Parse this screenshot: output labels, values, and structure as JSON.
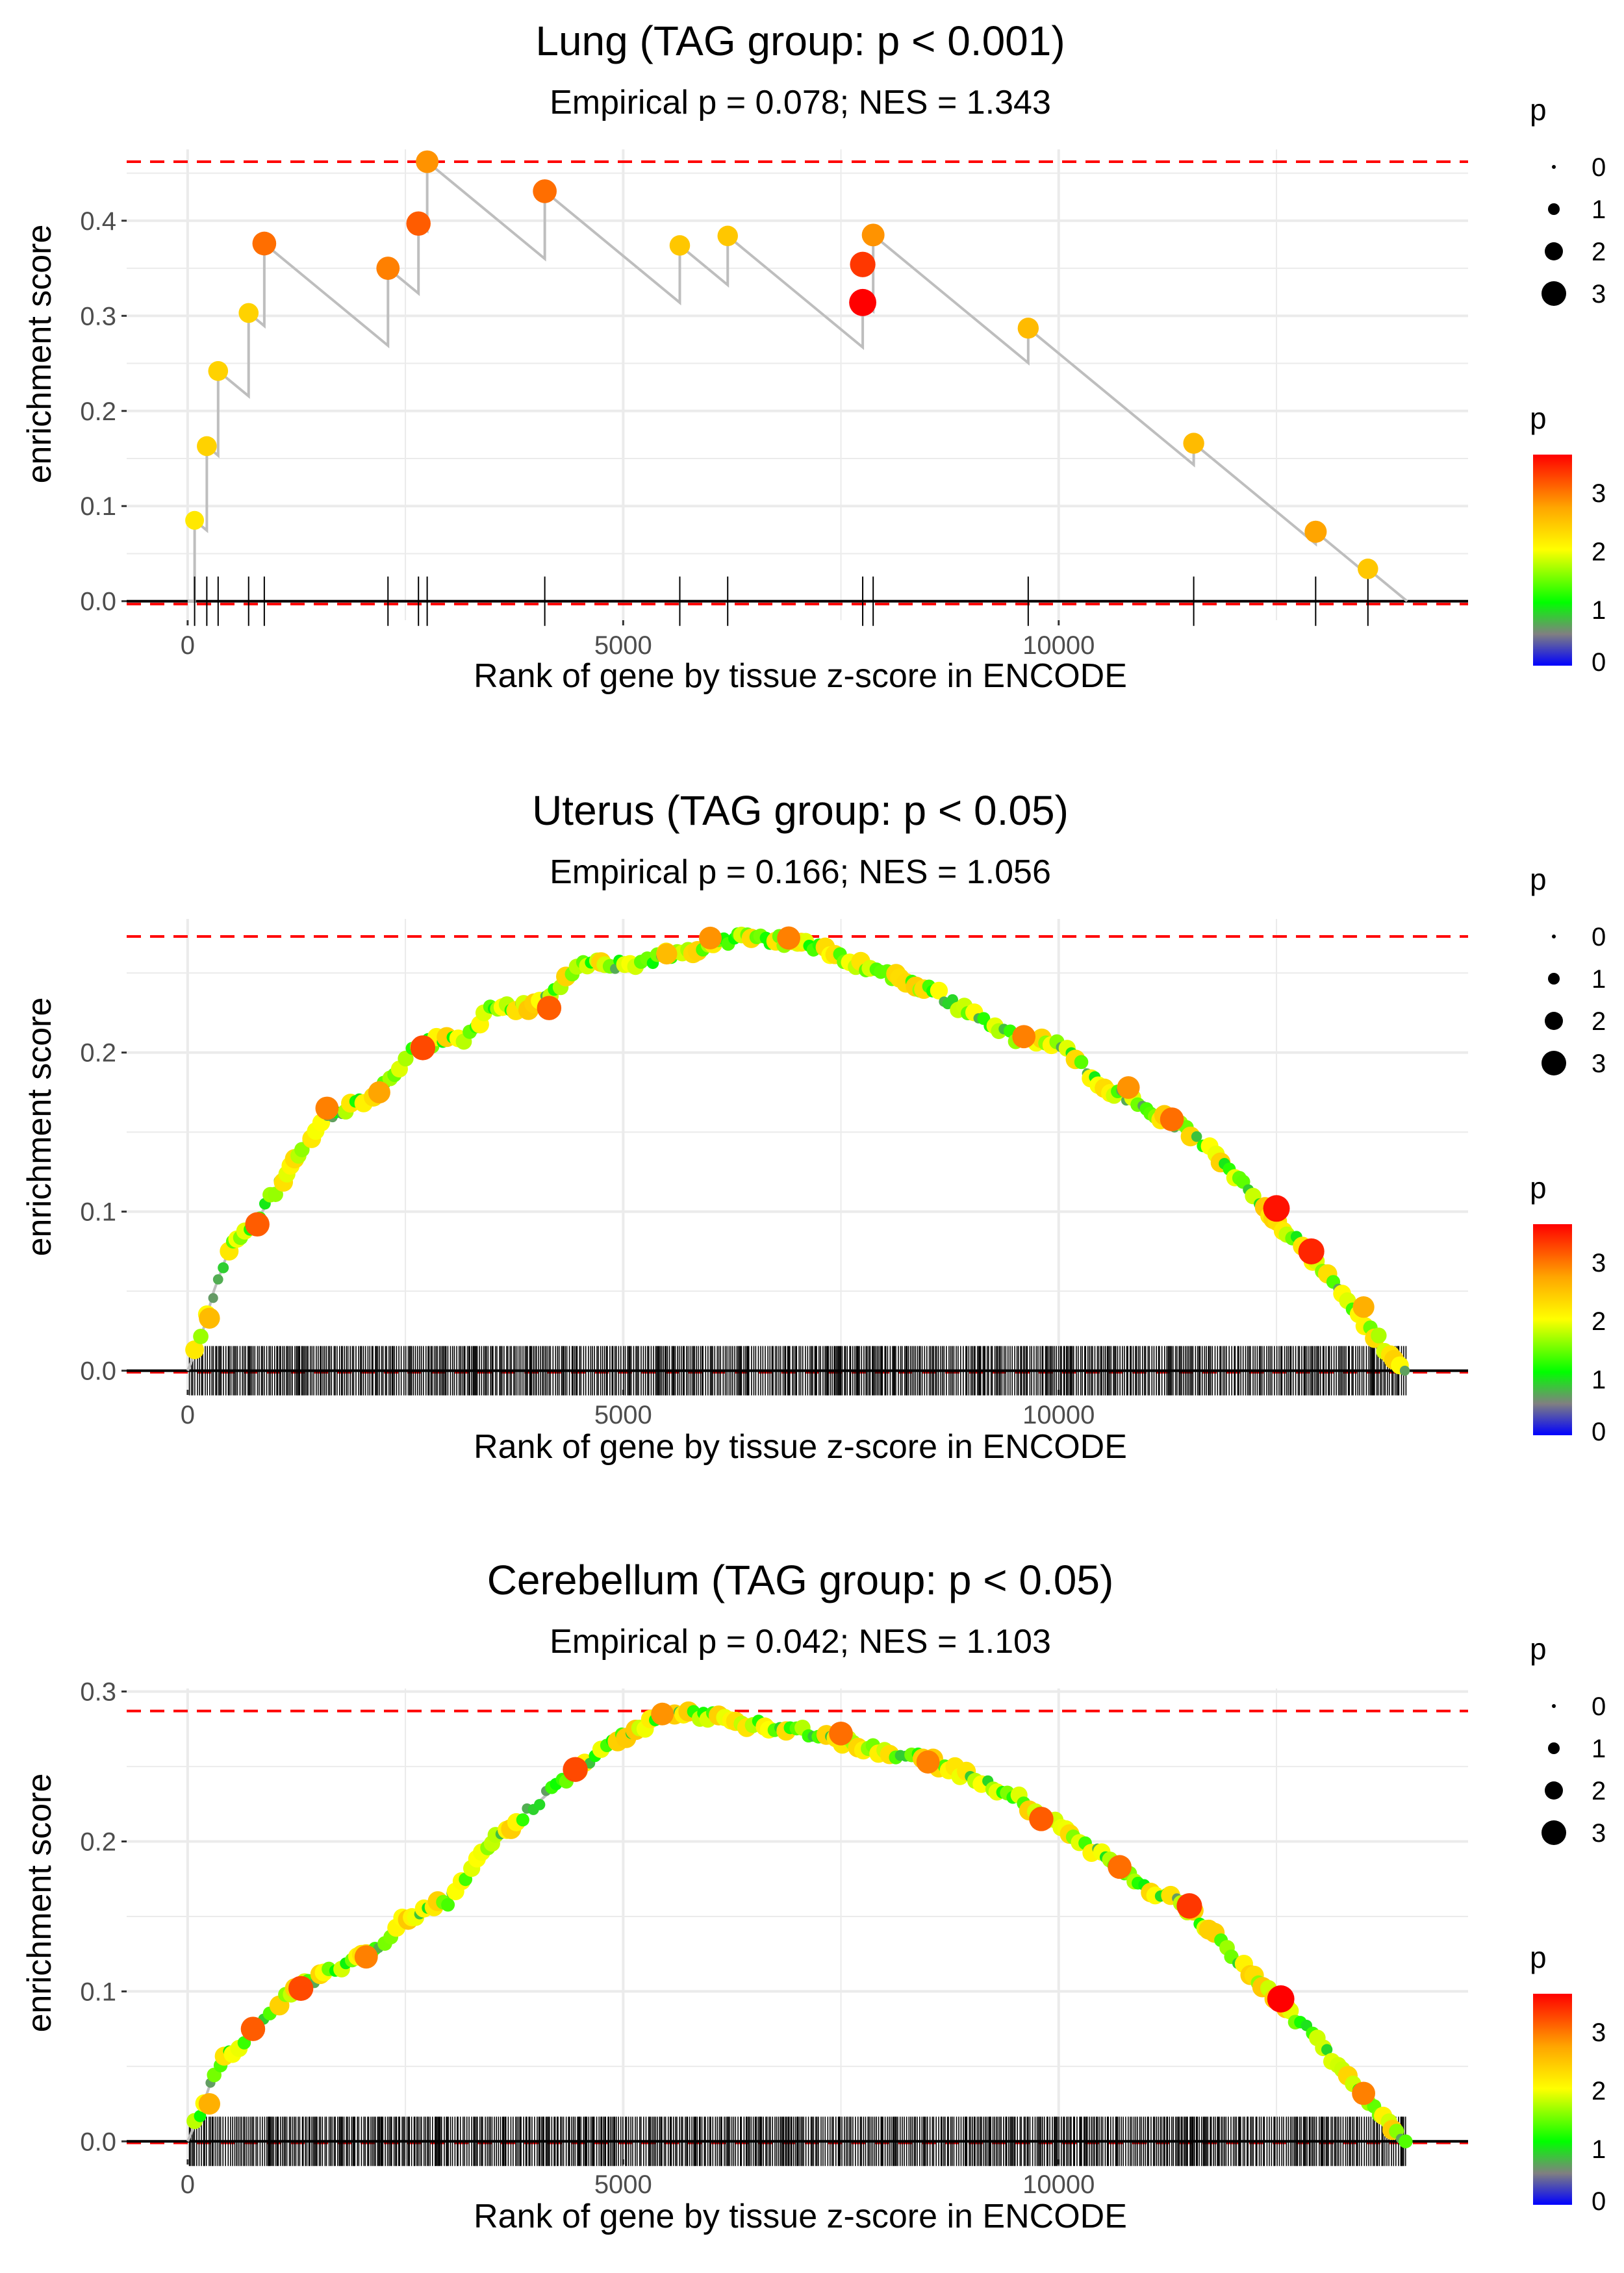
{
  "chart_data": [
    {
      "type": "scatter",
      "title": "Lung (TAG group: p < 0.001)",
      "subtitle": "Empirical p = 0.078; NES = 1.343",
      "xlabel": "Rank of gene by tissue z-score in ENCODE",
      "ylabel": "enrichment score",
      "xlim": [
        -700,
        14700
      ],
      "ylim": [
        -0.02,
        0.475
      ],
      "xticks": [
        0,
        5000,
        10000
      ],
      "xtick_labels": [
        "0",
        "5000",
        "10000"
      ],
      "yticks": [
        0.0,
        0.1,
        0.2,
        0.3,
        0.4
      ],
      "ytick_labels": [
        "0.0",
        "0.1",
        "0.2",
        "0.3",
        "0.4"
      ],
      "max_es": 0.462,
      "min_es": -0.003,
      "end_rank": 14000,
      "mode": "sparse",
      "points": [
        {
          "x": 80,
          "y": 0.085,
          "p": 2.2
        },
        {
          "x": 220,
          "y": 0.163,
          "p": 2.4
        },
        {
          "x": 350,
          "y": 0.242,
          "p": 2.4
        },
        {
          "x": 700,
          "y": 0.303,
          "p": 2.4
        },
        {
          "x": 880,
          "y": 0.376,
          "p": 3.1
        },
        {
          "x": 2300,
          "y": 0.35,
          "p": 3.0
        },
        {
          "x": 2650,
          "y": 0.397,
          "p": 3.2
        },
        {
          "x": 2750,
          "y": 0.462,
          "p": 2.9
        },
        {
          "x": 4100,
          "y": 0.431,
          "p": 3.1
        },
        {
          "x": 5650,
          "y": 0.374,
          "p": 2.5
        },
        {
          "x": 6200,
          "y": 0.384,
          "p": 2.5
        },
        {
          "x": 7750,
          "y": 0.314,
          "p": 3.7
        },
        {
          "x": 7750,
          "y": 0.354,
          "p": 3.4
        },
        {
          "x": 7870,
          "y": 0.385,
          "p": 2.9
        },
        {
          "x": 9650,
          "y": 0.287,
          "p": 2.6
        },
        {
          "x": 11550,
          "y": 0.166,
          "p": 2.6
        },
        {
          "x": 12950,
          "y": 0.073,
          "p": 2.8
        },
        {
          "x": 13550,
          "y": 0.034,
          "p": 2.5
        }
      ],
      "legend_size": {
        "title": "p",
        "labels": [
          "0",
          "1",
          "2",
          "3"
        ]
      },
      "legend_color": {
        "title": "p",
        "labels": [
          "3",
          "2",
          "1",
          "0"
        ]
      }
    },
    {
      "type": "scatter",
      "title": "Uterus (TAG group: p < 0.05)",
      "subtitle": "Empirical p = 0.166; NES = 1.056",
      "xlabel": "Rank of gene by tissue z-score in ENCODE",
      "ylabel": "enrichment score",
      "xlim": [
        -700,
        14700
      ],
      "ylim": [
        -0.012,
        0.284
      ],
      "xticks": [
        0,
        5000,
        10000
      ],
      "xtick_labels": [
        "0",
        "5000",
        "10000"
      ],
      "yticks": [
        0.0,
        0.1,
        0.2
      ],
      "ytick_labels": [
        "0.0",
        "0.1",
        "0.2"
      ],
      "max_es": 0.273,
      "min_es": -0.001,
      "end_rank": 14000,
      "mode": "dense",
      "curve": [
        {
          "x": 0,
          "y": 0.0
        },
        {
          "x": 150,
          "y": 0.02
        },
        {
          "x": 300,
          "y": 0.05
        },
        {
          "x": 500,
          "y": 0.08
        },
        {
          "x": 800,
          "y": 0.095
        },
        {
          "x": 1200,
          "y": 0.13
        },
        {
          "x": 1600,
          "y": 0.16
        },
        {
          "x": 2200,
          "y": 0.175
        },
        {
          "x": 2600,
          "y": 0.205
        },
        {
          "x": 3200,
          "y": 0.21
        },
        {
          "x": 3500,
          "y": 0.23
        },
        {
          "x": 4000,
          "y": 0.228
        },
        {
          "x": 4500,
          "y": 0.255
        },
        {
          "x": 5000,
          "y": 0.255
        },
        {
          "x": 5600,
          "y": 0.262
        },
        {
          "x": 6300,
          "y": 0.272
        },
        {
          "x": 7000,
          "y": 0.27
        },
        {
          "x": 8000,
          "y": 0.25
        },
        {
          "x": 8500,
          "y": 0.24
        },
        {
          "x": 9500,
          "y": 0.21
        },
        {
          "x": 10000,
          "y": 0.205
        },
        {
          "x": 10500,
          "y": 0.18
        },
        {
          "x": 11000,
          "y": 0.165
        },
        {
          "x": 11500,
          "y": 0.15
        },
        {
          "x": 12000,
          "y": 0.125
        },
        {
          "x": 12500,
          "y": 0.095
        },
        {
          "x": 13000,
          "y": 0.065
        },
        {
          "x": 13500,
          "y": 0.03
        },
        {
          "x": 13900,
          "y": 0.005
        },
        {
          "x": 14000,
          "y": 0.0
        }
      ],
      "highlights": [
        {
          "x": 250,
          "y": 0.033,
          "p": 2.6
        },
        {
          "x": 800,
          "y": 0.092,
          "p": 3.2
        },
        {
          "x": 1600,
          "y": 0.165,
          "p": 3.0
        },
        {
          "x": 2200,
          "y": 0.175,
          "p": 2.8
        },
        {
          "x": 2700,
          "y": 0.203,
          "p": 3.3
        },
        {
          "x": 4150,
          "y": 0.228,
          "p": 3.2
        },
        {
          "x": 5500,
          "y": 0.262,
          "p": 2.6
        },
        {
          "x": 6000,
          "y": 0.272,
          "p": 2.9
        },
        {
          "x": 6900,
          "y": 0.272,
          "p": 3.0
        },
        {
          "x": 9600,
          "y": 0.21,
          "p": 3.0
        },
        {
          "x": 10800,
          "y": 0.178,
          "p": 2.9
        },
        {
          "x": 11300,
          "y": 0.158,
          "p": 3.1
        },
        {
          "x": 12500,
          "y": 0.102,
          "p": 3.6
        },
        {
          "x": 12900,
          "y": 0.075,
          "p": 3.5
        },
        {
          "x": 13500,
          "y": 0.04,
          "p": 2.7
        }
      ],
      "legend_size": {
        "title": "p",
        "labels": [
          "0",
          "1",
          "2",
          "3"
        ]
      },
      "legend_color": {
        "title": "p",
        "labels": [
          "3",
          "2",
          "1",
          "0"
        ]
      }
    },
    {
      "type": "scatter",
      "title": "Cerebellum (TAG group: p < 0.05)",
      "subtitle": "Empirical p = 0.042; NES = 1.103",
      "xlabel": "Rank of gene by tissue z-score in ENCODE",
      "ylabel": "enrichment score",
      "xlim": [
        -700,
        14700
      ],
      "ylim": [
        -0.012,
        0.302
      ],
      "xticks": [
        0,
        5000,
        10000
      ],
      "xtick_labels": [
        "0",
        "5000",
        "10000"
      ],
      "yticks": [
        0.0,
        0.1,
        0.2,
        0.3
      ],
      "ytick_labels": [
        "0.0",
        "0.1",
        "0.2",
        "0.3"
      ],
      "max_es": 0.287,
      "min_es": -0.001,
      "end_rank": 14000,
      "mode": "dense",
      "curve": [
        {
          "x": 0,
          "y": 0.0
        },
        {
          "x": 150,
          "y": 0.02
        },
        {
          "x": 300,
          "y": 0.045
        },
        {
          "x": 500,
          "y": 0.06
        },
        {
          "x": 800,
          "y": 0.075
        },
        {
          "x": 1200,
          "y": 0.1
        },
        {
          "x": 1700,
          "y": 0.115
        },
        {
          "x": 2200,
          "y": 0.13
        },
        {
          "x": 2500,
          "y": 0.15
        },
        {
          "x": 3000,
          "y": 0.16
        },
        {
          "x": 3500,
          "y": 0.2
        },
        {
          "x": 4000,
          "y": 0.225
        },
        {
          "x": 4500,
          "y": 0.25
        },
        {
          "x": 5000,
          "y": 0.27
        },
        {
          "x": 5500,
          "y": 0.285
        },
        {
          "x": 6000,
          "y": 0.283
        },
        {
          "x": 6500,
          "y": 0.278
        },
        {
          "x": 7000,
          "y": 0.275
        },
        {
          "x": 8000,
          "y": 0.26
        },
        {
          "x": 8500,
          "y": 0.255
        },
        {
          "x": 9500,
          "y": 0.23
        },
        {
          "x": 10000,
          "y": 0.21
        },
        {
          "x": 10500,
          "y": 0.19
        },
        {
          "x": 11000,
          "y": 0.17
        },
        {
          "x": 11500,
          "y": 0.155
        },
        {
          "x": 12000,
          "y": 0.125
        },
        {
          "x": 12500,
          "y": 0.095
        },
        {
          "x": 13000,
          "y": 0.065
        },
        {
          "x": 13500,
          "y": 0.03
        },
        {
          "x": 14000,
          "y": 0.0
        }
      ],
      "highlights": [
        {
          "x": 250,
          "y": 0.025,
          "p": 2.7
        },
        {
          "x": 750,
          "y": 0.075,
          "p": 3.2
        },
        {
          "x": 1300,
          "y": 0.102,
          "p": 3.3
        },
        {
          "x": 2050,
          "y": 0.123,
          "p": 3.0
        },
        {
          "x": 4450,
          "y": 0.248,
          "p": 3.3
        },
        {
          "x": 5450,
          "y": 0.285,
          "p": 2.9
        },
        {
          "x": 7500,
          "y": 0.272,
          "p": 3.1
        },
        {
          "x": 8500,
          "y": 0.253,
          "p": 3.0
        },
        {
          "x": 9800,
          "y": 0.215,
          "p": 3.2
        },
        {
          "x": 10700,
          "y": 0.183,
          "p": 3.1
        },
        {
          "x": 11500,
          "y": 0.157,
          "p": 3.4
        },
        {
          "x": 12550,
          "y": 0.095,
          "p": 3.7
        },
        {
          "x": 13500,
          "y": 0.032,
          "p": 3.0
        }
      ],
      "legend_size": {
        "title": "p",
        "labels": [
          "0",
          "1",
          "2",
          "3"
        ]
      },
      "legend_color": {
        "title": "p",
        "labels": [
          "3",
          "2",
          "1",
          "0"
        ]
      }
    }
  ],
  "colors": {
    "gridline": "#ebebeb",
    "reference_line": "#ff0000",
    "step_line": "#bebebe",
    "axis_line": "#000000",
    "colorscale": [
      "#0000ff",
      "#808080",
      "#00ff00",
      "#ffff00",
      "#ffa500",
      "#ff0000"
    ]
  }
}
